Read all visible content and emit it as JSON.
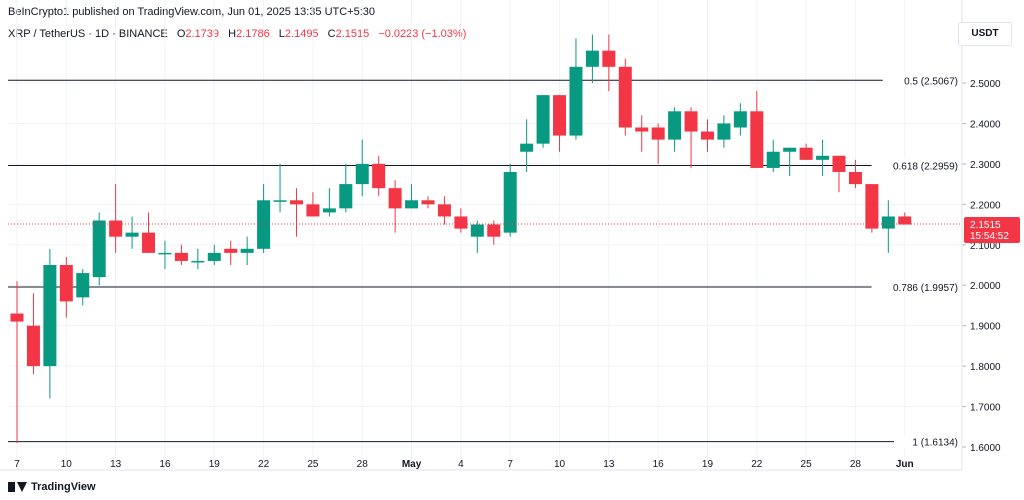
{
  "header": {
    "published": "BeInCrypto1 published on TradingView.com, Jun 01, 2025 13:35 UTC+5:30"
  },
  "symbol": {
    "name": "XRP / TetherUS · 1D · BINANCE",
    "o_label": "O",
    "o_value": "2.1739",
    "h_label": "H",
    "h_value": "2.1786",
    "l_label": "L",
    "l_value": "2.1495",
    "c_label": "C",
    "c_value": "2.1515",
    "change": "−0.0223 (−1.03%)"
  },
  "currency": "USDT",
  "last_price": {
    "price": "2.1515",
    "countdown": "15:54:52"
  },
  "footer": {
    "logo_text": "TradingView"
  },
  "colors": {
    "up": "#089981",
    "down": "#f23645",
    "level_line": "#131722",
    "grid": "#f0f3fa"
  },
  "chart_data": {
    "type": "candlestick",
    "ylim": [
      1.6,
      2.58
    ],
    "y_ticks": [
      "1.6000",
      "1.7000",
      "1.8000",
      "1.9000",
      "2.0000",
      "2.1000",
      "2.2000",
      "2.3000",
      "2.4000",
      "2.5000"
    ],
    "x_tick_labels": [
      "7",
      "10",
      "13",
      "16",
      "19",
      "22",
      "25",
      "28",
      "May",
      "4",
      "7",
      "10",
      "13",
      "16",
      "19",
      "22",
      "25",
      "28",
      "Jun"
    ],
    "fib_levels": [
      {
        "label": "0.5 (2.5067)",
        "value": 2.5067
      },
      {
        "label": "0.618 (2.2959)",
        "value": 2.2959
      },
      {
        "label": "0.786 (1.9957)",
        "value": 1.9957
      },
      {
        "label": "1 (1.6134)",
        "value": 1.6134
      }
    ],
    "candles": [
      {
        "o": 1.93,
        "h": 2.01,
        "l": 1.61,
        "c": 1.91
      },
      {
        "o": 1.9,
        "h": 1.98,
        "l": 1.78,
        "c": 1.8
      },
      {
        "o": 1.8,
        "h": 2.09,
        "l": 1.72,
        "c": 2.05
      },
      {
        "o": 2.05,
        "h": 2.07,
        "l": 1.92,
        "c": 1.96
      },
      {
        "o": 1.97,
        "h": 2.04,
        "l": 1.95,
        "c": 2.03
      },
      {
        "o": 2.02,
        "h": 2.18,
        "l": 2.0,
        "c": 2.16
      },
      {
        "o": 2.16,
        "h": 2.25,
        "l": 2.08,
        "c": 2.12
      },
      {
        "o": 2.12,
        "h": 2.17,
        "l": 2.09,
        "c": 2.13
      },
      {
        "o": 2.13,
        "h": 2.18,
        "l": 2.08,
        "c": 2.08
      },
      {
        "o": 2.08,
        "h": 2.11,
        "l": 2.04,
        "c": 2.08
      },
      {
        "o": 2.08,
        "h": 2.1,
        "l": 2.05,
        "c": 2.06
      },
      {
        "o": 2.06,
        "h": 2.09,
        "l": 2.04,
        "c": 2.06
      },
      {
        "o": 2.06,
        "h": 2.1,
        "l": 2.05,
        "c": 2.08
      },
      {
        "o": 2.09,
        "h": 2.11,
        "l": 2.05,
        "c": 2.08
      },
      {
        "o": 2.08,
        "h": 2.12,
        "l": 2.05,
        "c": 2.09
      },
      {
        "o": 2.09,
        "h": 2.25,
        "l": 2.08,
        "c": 2.21
      },
      {
        "o": 2.21,
        "h": 2.3,
        "l": 2.18,
        "c": 2.21
      },
      {
        "o": 2.21,
        "h": 2.24,
        "l": 2.12,
        "c": 2.2
      },
      {
        "o": 2.2,
        "h": 2.23,
        "l": 2.17,
        "c": 2.17
      },
      {
        "o": 2.18,
        "h": 2.24,
        "l": 2.17,
        "c": 2.19
      },
      {
        "o": 2.19,
        "h": 2.3,
        "l": 2.18,
        "c": 2.25
      },
      {
        "o": 2.25,
        "h": 2.36,
        "l": 2.22,
        "c": 2.3
      },
      {
        "o": 2.3,
        "h": 2.32,
        "l": 2.22,
        "c": 2.24
      },
      {
        "o": 2.24,
        "h": 2.26,
        "l": 2.13,
        "c": 2.19
      },
      {
        "o": 2.19,
        "h": 2.25,
        "l": 2.19,
        "c": 2.21
      },
      {
        "o": 2.21,
        "h": 2.22,
        "l": 2.19,
        "c": 2.2
      },
      {
        "o": 2.2,
        "h": 2.22,
        "l": 2.15,
        "c": 2.17
      },
      {
        "o": 2.17,
        "h": 2.19,
        "l": 2.13,
        "c": 2.14
      },
      {
        "o": 2.12,
        "h": 2.16,
        "l": 2.08,
        "c": 2.15
      },
      {
        "o": 2.15,
        "h": 2.16,
        "l": 2.1,
        "c": 2.12
      },
      {
        "o": 2.13,
        "h": 2.3,
        "l": 2.12,
        "c": 2.28
      },
      {
        "o": 2.33,
        "h": 2.41,
        "l": 2.28,
        "c": 2.35
      },
      {
        "o": 2.35,
        "h": 2.47,
        "l": 2.34,
        "c": 2.47
      },
      {
        "o": 2.47,
        "h": 2.47,
        "l": 2.33,
        "c": 2.37
      },
      {
        "o": 2.37,
        "h": 2.61,
        "l": 2.36,
        "c": 2.54
      },
      {
        "o": 2.54,
        "h": 2.62,
        "l": 2.5,
        "c": 2.58
      },
      {
        "o": 2.58,
        "h": 2.62,
        "l": 2.48,
        "c": 2.54
      },
      {
        "o": 2.54,
        "h": 2.56,
        "l": 2.37,
        "c": 2.39
      },
      {
        "o": 2.39,
        "h": 2.42,
        "l": 2.33,
        "c": 2.38
      },
      {
        "o": 2.39,
        "h": 2.4,
        "l": 2.3,
        "c": 2.36
      },
      {
        "o": 2.36,
        "h": 2.44,
        "l": 2.33,
        "c": 2.43
      },
      {
        "o": 2.43,
        "h": 2.44,
        "l": 2.29,
        "c": 2.38
      },
      {
        "o": 2.38,
        "h": 2.41,
        "l": 2.33,
        "c": 2.36
      },
      {
        "o": 2.36,
        "h": 2.42,
        "l": 2.34,
        "c": 2.4
      },
      {
        "o": 2.39,
        "h": 2.45,
        "l": 2.37,
        "c": 2.43
      },
      {
        "o": 2.43,
        "h": 2.48,
        "l": 2.29,
        "c": 2.29
      },
      {
        "o": 2.29,
        "h": 2.36,
        "l": 2.28,
        "c": 2.33
      },
      {
        "o": 2.33,
        "h": 2.34,
        "l": 2.27,
        "c": 2.34
      },
      {
        "o": 2.34,
        "h": 2.35,
        "l": 2.31,
        "c": 2.31
      },
      {
        "o": 2.31,
        "h": 2.36,
        "l": 2.27,
        "c": 2.32
      },
      {
        "o": 2.32,
        "h": 2.32,
        "l": 2.23,
        "c": 2.28
      },
      {
        "o": 2.28,
        "h": 2.31,
        "l": 2.24,
        "c": 2.25
      },
      {
        "o": 2.25,
        "h": 2.25,
        "l": 2.13,
        "c": 2.14
      },
      {
        "o": 2.14,
        "h": 2.21,
        "l": 2.08,
        "c": 2.17
      },
      {
        "o": 2.17,
        "h": 2.18,
        "l": 2.15,
        "c": 2.15
      }
    ],
    "last_price_value": 2.1515
  }
}
